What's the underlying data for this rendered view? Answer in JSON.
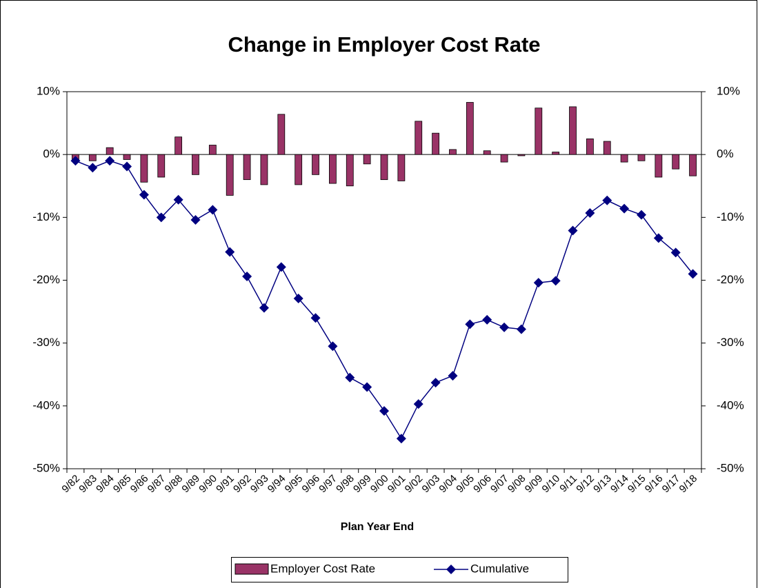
{
  "chart_data": {
    "type": "bar_line",
    "title": "Change in Employer Cost Rate",
    "x_label": "Plan Year End",
    "categories": [
      "9/82",
      "9/83",
      "9/84",
      "9/85",
      "9/86",
      "9/87",
      "9/88",
      "9/89",
      "9/90",
      "9/91",
      "9/92",
      "9/93",
      "9/94",
      "9/95",
      "9/96",
      "9/97",
      "9/98",
      "9/99",
      "9/00",
      "9/01",
      "9/02",
      "9/03",
      "9/04",
      "9/05",
      "9/06",
      "9/07",
      "9/08",
      "9/09",
      "9/10",
      "9/11",
      "9/12",
      "9/13",
      "9/14",
      "9/15",
      "9/16",
      "9/17",
      "9/18"
    ],
    "series": [
      {
        "name": "Employer Cost Rate",
        "type": "bar",
        "color": "#993366",
        "values": [
          -0.8,
          -1.0,
          1.1,
          -0.8,
          -4.4,
          -3.6,
          2.8,
          -3.2,
          1.5,
          -6.5,
          -4.0,
          -4.8,
          6.4,
          -4.8,
          -3.2,
          -4.6,
          -5.0,
          -1.5,
          -4.0,
          -4.2,
          5.3,
          3.4,
          0.8,
          8.3,
          0.6,
          -1.2,
          -0.2,
          7.4,
          0.4,
          7.6,
          2.5,
          2.1,
          -1.2,
          -1.0,
          -3.6,
          -2.3,
          -3.4
        ]
      },
      {
        "name": "Cumulative",
        "type": "line",
        "color": "#000080",
        "values": [
          -1.0,
          -2.1,
          -1.0,
          -1.9,
          -6.4,
          -10.0,
          -7.2,
          -10.4,
          -8.8,
          -15.5,
          -19.4,
          -24.4,
          -17.9,
          -22.9,
          -26.0,
          -30.5,
          -35.5,
          -37.0,
          -40.8,
          -45.2,
          -39.7,
          -36.3,
          -35.2,
          -27.0,
          -26.3,
          -27.5,
          -27.8,
          -20.4,
          -20.1,
          -12.1,
          -9.3,
          -7.3,
          -8.6,
          -9.6,
          -13.3,
          -15.6,
          -19.0
        ]
      }
    ],
    "ylim": [
      -50,
      10
    ],
    "yticks": [
      {
        "value": -50,
        "label": "-50%"
      },
      {
        "value": -40,
        "label": "-40%"
      },
      {
        "value": -30,
        "label": "-30%"
      },
      {
        "value": -20,
        "label": "-20%"
      },
      {
        "value": -10,
        "label": "-10%"
      },
      {
        "value": 0,
        "label": "0%"
      },
      {
        "value": 10,
        "label": "10%"
      }
    ],
    "y2lim": [
      -50,
      10
    ],
    "y2ticks": [
      {
        "value": -50,
        "label": "-50%"
      },
      {
        "value": -40,
        "label": "-40%"
      },
      {
        "value": -30,
        "label": "-30%"
      },
      {
        "value": -20,
        "label": "-20%"
      },
      {
        "value": -10,
        "label": "-10%"
      },
      {
        "value": 0,
        "label": "0%"
      },
      {
        "value": 10,
        "label": "10%"
      }
    ],
    "legend": "bottom"
  }
}
